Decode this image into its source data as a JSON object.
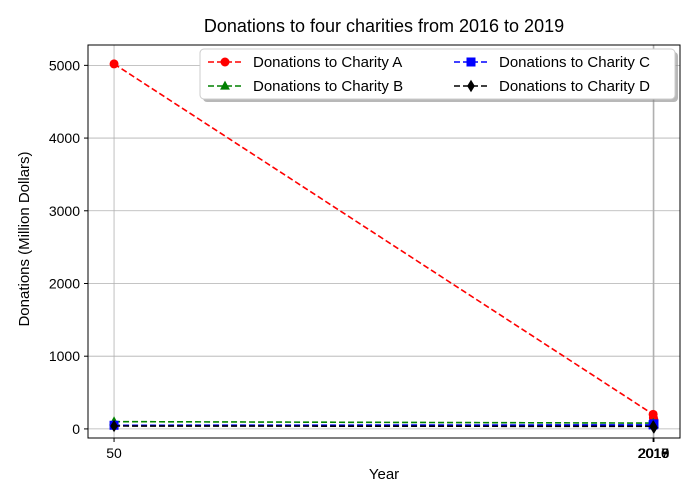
{
  "chart_data": {
    "type": "line",
    "title": "Donations to four charities from 2016 to 2019",
    "xlabel": "Year",
    "ylabel": "Donations (Million Dollars)",
    "x": [
      50,
      2016,
      2017,
      2018,
      2019
    ],
    "x_tick_labels": [
      "50",
      "2016",
      "2017",
      "2018",
      "2019"
    ],
    "xlim": [
      -45,
      2114
    ],
    "ylim": [
      -125,
      5280
    ],
    "yticks": [
      0,
      1000,
      2000,
      3000,
      4000,
      5000
    ],
    "grid": true,
    "legend_position": "top-right",
    "legend_columns": 2,
    "series": [
      {
        "name": "Donations to Charity A",
        "color": "#ff0000",
        "marker": "circle",
        "values": [
          5020,
          200,
          150,
          110,
          120
        ]
      },
      {
        "name": "Donations to Charity B",
        "color": "#008000",
        "marker": "triangle",
        "values": [
          100,
          80,
          70,
          65,
          60
        ]
      },
      {
        "name": "Donations to Charity C",
        "color": "#0000ff",
        "marker": "square",
        "values": [
          50,
          55,
          60,
          65,
          70
        ]
      },
      {
        "name": "Donations to Charity D",
        "color": "#000000",
        "marker": "diamond",
        "values": [
          40,
          35,
          30,
          25,
          20
        ]
      }
    ]
  }
}
